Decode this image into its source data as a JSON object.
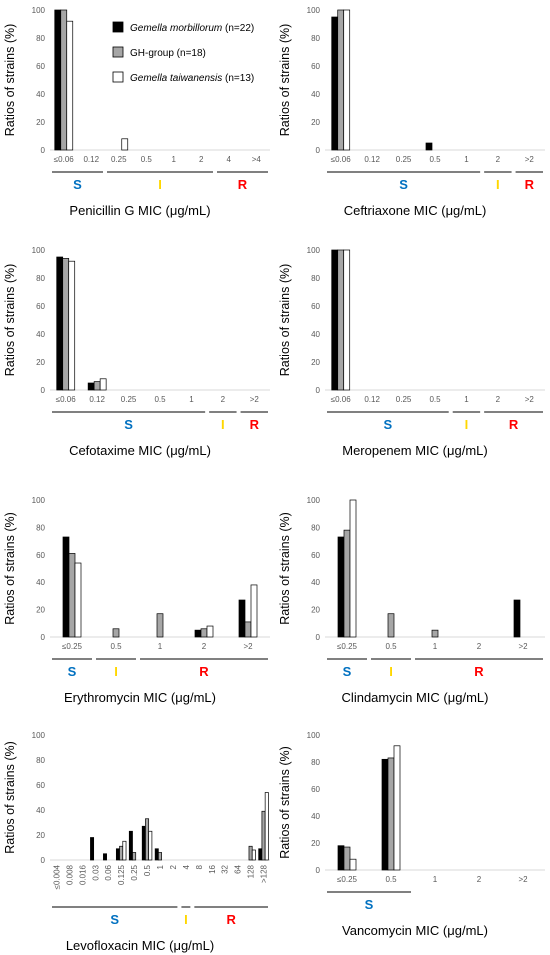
{
  "legend": {
    "entries": [
      {
        "name_italic": "Gemella morbillorum",
        "name_rest": " (n=22)",
        "color": "#000000"
      },
      {
        "name_italic": "",
        "name_rest": "GH-group (n=18)",
        "color": "#a6a6a6"
      },
      {
        "name_italic": "Gemella taiwanensis",
        "name_rest": " (n=13)",
        "color": "#ffffff"
      }
    ]
  },
  "colors": {
    "series": [
      "#000000",
      "#a6a6a6",
      "#ffffff"
    ],
    "S": "#0070c0",
    "I": "#ffd700",
    "R": "#ff0000"
  },
  "chart_data": [
    {
      "type": "bar",
      "title": "Penicillin G MIC (μg/mL)",
      "ylabel": "Ratios of strains (%)",
      "ylim": [
        0,
        100
      ],
      "yticks": [
        "0",
        "20",
        "40",
        "60",
        "80",
        "100"
      ],
      "categories": [
        "≤0.06",
        "0.12",
        "0.25",
        "0.5",
        "1",
        "2",
        "4",
        ">4"
      ],
      "series": [
        {
          "name": "Gemella morbillorum (n=22)",
          "values": [
            100,
            0,
            0,
            0,
            0,
            0,
            0,
            0
          ]
        },
        {
          "name": "GH-group (n=18)",
          "values": [
            100,
            0,
            0,
            0,
            0,
            0,
            0,
            0
          ]
        },
        {
          "name": "Gemella taiwanensis (n=13)",
          "values": [
            92,
            0,
            8,
            0,
            0,
            0,
            0,
            0
          ]
        }
      ],
      "groups": [
        {
          "label": "S",
          "start": 0,
          "end": 1
        },
        {
          "label": "I",
          "start": 2,
          "end": 5
        },
        {
          "label": "R",
          "start": 6,
          "end": 7
        }
      ]
    },
    {
      "type": "bar",
      "title": "Ceftriaxone MIC (μg/mL)",
      "ylabel": "Ratios of strains (%)",
      "ylim": [
        0,
        100
      ],
      "yticks": [
        "0",
        "20",
        "40",
        "60",
        "80",
        "100"
      ],
      "categories": [
        "≤0.06",
        "0.12",
        "0.25",
        "0.5",
        "1",
        "2",
        ">2"
      ],
      "series": [
        {
          "name": "Gemella morbillorum (n=22)",
          "values": [
            95,
            0,
            0,
            5,
            0,
            0,
            0
          ]
        },
        {
          "name": "GH-group (n=18)",
          "values": [
            100,
            0,
            0,
            0,
            0,
            0,
            0
          ]
        },
        {
          "name": "Gemella taiwanensis (n=13)",
          "values": [
            100,
            0,
            0,
            0,
            0,
            0,
            0
          ]
        }
      ],
      "groups": [
        {
          "label": "S",
          "start": 0,
          "end": 4
        },
        {
          "label": "I",
          "start": 5,
          "end": 5
        },
        {
          "label": "R",
          "start": 6,
          "end": 6
        }
      ]
    },
    {
      "type": "bar",
      "title": "Cefotaxime MIC (μg/mL)",
      "ylabel": "Ratios of strains (%)",
      "ylim": [
        0,
        100
      ],
      "yticks": [
        "0",
        "20",
        "40",
        "60",
        "80",
        "100"
      ],
      "categories": [
        "≤0.06",
        "0.12",
        "0.25",
        "0.5",
        "1",
        "2",
        ">2"
      ],
      "series": [
        {
          "name": "Gemella morbillorum (n=22)",
          "values": [
            95,
            5,
            0,
            0,
            0,
            0,
            0
          ]
        },
        {
          "name": "GH-group (n=18)",
          "values": [
            94,
            6,
            0,
            0,
            0,
            0,
            0
          ]
        },
        {
          "name": "Gemella taiwanensis (n=13)",
          "values": [
            92,
            8,
            0,
            0,
            0,
            0,
            0
          ]
        }
      ],
      "groups": [
        {
          "label": "S",
          "start": 0,
          "end": 4
        },
        {
          "label": "I",
          "start": 5,
          "end": 5
        },
        {
          "label": "R",
          "start": 6,
          "end": 6
        }
      ]
    },
    {
      "type": "bar",
      "title": "Meropenem MIC (μg/mL)",
      "ylabel": "Ratios of strains (%)",
      "ylim": [
        0,
        100
      ],
      "yticks": [
        "0",
        "20",
        "40",
        "60",
        "80",
        "100"
      ],
      "categories": [
        "≤0.06",
        "0.12",
        "0.25",
        "0.5",
        "1",
        "2",
        ">2"
      ],
      "series": [
        {
          "name": "Gemella morbillorum (n=22)",
          "values": [
            100,
            0,
            0,
            0,
            0,
            0,
            0
          ]
        },
        {
          "name": "GH-group (n=18)",
          "values": [
            100,
            0,
            0,
            0,
            0,
            0,
            0
          ]
        },
        {
          "name": "Gemella taiwanensis (n=13)",
          "values": [
            100,
            0,
            0,
            0,
            0,
            0,
            0
          ]
        }
      ],
      "groups": [
        {
          "label": "S",
          "start": 0,
          "end": 3
        },
        {
          "label": "I",
          "start": 4,
          "end": 4
        },
        {
          "label": "R",
          "start": 5,
          "end": 6
        }
      ]
    },
    {
      "type": "bar",
      "title": "Erythromycin MIC (μg/mL)",
      "ylabel": "Ratios of strains (%)",
      "ylim": [
        0,
        100
      ],
      "yticks": [
        "0",
        "20",
        "40",
        "60",
        "80",
        "100"
      ],
      "categories": [
        "≤0.25",
        "0.5",
        "1",
        "2",
        ">2"
      ],
      "series": [
        {
          "name": "Gemella morbillorum (n=22)",
          "values": [
            73,
            0,
            0,
            5,
            27
          ]
        },
        {
          "name": "GH-group (n=18)",
          "values": [
            61,
            6,
            17,
            6,
            11
          ]
        },
        {
          "name": "Gemella taiwanensis (n=13)",
          "values": [
            54,
            0,
            0,
            8,
            38
          ]
        }
      ],
      "groups": [
        {
          "label": "S",
          "start": 0,
          "end": 0
        },
        {
          "label": "I",
          "start": 1,
          "end": 1
        },
        {
          "label": "R",
          "start": 2,
          "end": 4
        }
      ]
    },
    {
      "type": "bar",
      "title": "Clindamycin MIC (μg/mL)",
      "ylabel": "Ratios of strains (%)",
      "ylim": [
        0,
        100
      ],
      "yticks": [
        "0",
        "20",
        "40",
        "60",
        "80",
        "100"
      ],
      "categories": [
        "≤0.25",
        "0.5",
        "1",
        "2",
        ">2"
      ],
      "series": [
        {
          "name": "Gemella morbillorum (n=22)",
          "values": [
            73,
            0,
            0,
            0,
            27
          ]
        },
        {
          "name": "GH-group (n=18)",
          "values": [
            78,
            17,
            5,
            0,
            0
          ]
        },
        {
          "name": "Gemella taiwanensis (n=13)",
          "values": [
            100,
            0,
            0,
            0,
            0
          ]
        }
      ],
      "groups": [
        {
          "label": "S",
          "start": 0,
          "end": 0
        },
        {
          "label": "I",
          "start": 1,
          "end": 1
        },
        {
          "label": "R",
          "start": 2,
          "end": 4
        }
      ]
    },
    {
      "type": "bar",
      "title": "Levofloxacin MIC (μg/mL)",
      "ylabel": "Ratios of strains (%)",
      "ylim": [
        0,
        100
      ],
      "yticks": [
        "0",
        "20",
        "40",
        "60",
        "80",
        "100"
      ],
      "rotate_ticks": true,
      "categories": [
        "≤0.004",
        "0.008",
        "0.016",
        "0.03",
        "0.06",
        "0.125",
        "0.25",
        "0.5",
        "1",
        "2",
        "4",
        "8",
        "16",
        "32",
        "64",
        "128",
        ">128"
      ],
      "series": [
        {
          "name": "Gemella morbillorum (n=22)",
          "values": [
            0,
            0,
            0,
            18,
            5,
            9,
            23,
            27,
            9,
            0,
            0,
            0,
            0,
            0,
            0,
            0,
            9
          ]
        },
        {
          "name": "GH-group (n=18)",
          "values": [
            0,
            0,
            0,
            0,
            0,
            11,
            6,
            33,
            6,
            0,
            0,
            0,
            0,
            0,
            0,
            11,
            39
          ]
        },
        {
          "name": "Gemella taiwanensis (n=13)",
          "values": [
            0,
            0,
            0,
            0,
            0,
            15,
            0,
            23,
            0,
            0,
            0,
            0,
            0,
            0,
            0,
            8,
            54
          ]
        }
      ],
      "groups": [
        {
          "label": "S",
          "start": 0,
          "end": 9
        },
        {
          "label": "I",
          "start": 10,
          "end": 10
        },
        {
          "label": "R",
          "start": 11,
          "end": 16
        }
      ]
    },
    {
      "type": "bar",
      "title": "Vancomycin MIC (μg/mL)",
      "ylabel": "Ratios of strains (%)",
      "ylim": [
        0,
        100
      ],
      "yticks": [
        "0",
        "20",
        "40",
        "60",
        "80",
        "100"
      ],
      "categories": [
        "≤0.25",
        "0.5",
        "1",
        "2",
        ">2"
      ],
      "series": [
        {
          "name": "Gemella morbillorum (n=22)",
          "values": [
            18,
            82,
            0,
            0,
            0
          ]
        },
        {
          "name": "GH-group (n=18)",
          "values": [
            17,
            83,
            0,
            0,
            0
          ]
        },
        {
          "name": "Gemella taiwanensis (n=13)",
          "values": [
            8,
            92,
            0,
            0,
            0
          ]
        }
      ],
      "groups": [
        {
          "label": "S",
          "start": 0,
          "end": 1
        }
      ]
    }
  ]
}
